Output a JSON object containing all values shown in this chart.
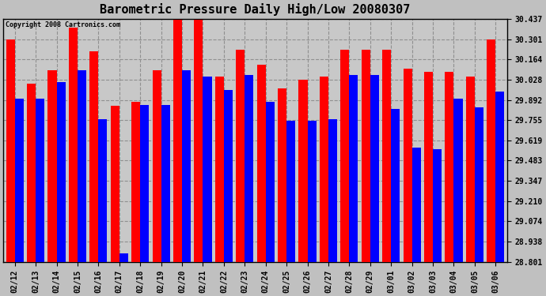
{
  "title": "Barometric Pressure Daily High/Low 20080307",
  "copyright": "Copyright 2008 Cartronics.com",
  "dates": [
    "02/12",
    "02/13",
    "02/14",
    "02/15",
    "02/16",
    "02/17",
    "02/18",
    "02/19",
    "02/20",
    "02/21",
    "02/22",
    "02/23",
    "02/24",
    "02/25",
    "02/26",
    "02/27",
    "02/28",
    "02/29",
    "03/01",
    "03/02",
    "03/03",
    "03/04",
    "03/05",
    "03/06"
  ],
  "highs": [
    30.3,
    30.0,
    30.09,
    30.38,
    30.22,
    29.85,
    29.88,
    30.09,
    30.43,
    30.43,
    30.05,
    30.23,
    30.13,
    29.97,
    30.03,
    30.05,
    30.23,
    30.23,
    30.23,
    30.1,
    30.08,
    30.08,
    30.05,
    30.3
  ],
  "lows": [
    29.9,
    29.9,
    30.01,
    30.09,
    29.76,
    28.86,
    29.86,
    29.86,
    30.09,
    30.05,
    29.96,
    30.06,
    29.88,
    29.75,
    29.75,
    29.76,
    30.06,
    30.06,
    29.83,
    29.57,
    29.56,
    29.9,
    29.84,
    29.95
  ],
  "high_color": "#ff0000",
  "low_color": "#0000ff",
  "bg_color": "#c0c0c0",
  "plot_bg_color": "#c8c8c8",
  "grid_color": "#909090",
  "yticks": [
    28.801,
    28.938,
    29.074,
    29.21,
    29.347,
    29.483,
    29.619,
    29.755,
    29.892,
    30.028,
    30.164,
    30.301,
    30.437
  ],
  "ymin": 28.801,
  "ymax": 30.437,
  "title_fontsize": 11,
  "tick_fontsize": 7,
  "copyright_fontsize": 6
}
